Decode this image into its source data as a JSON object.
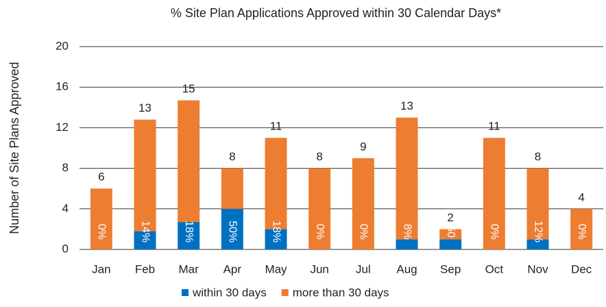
{
  "chart_data": {
    "type": "stacked_bar",
    "title": "% Site Plan Applications Approved within 30 Calendar Days*",
    "y_label": "Number of Site Plans Approved",
    "categories": [
      "Jan",
      "Feb",
      "Mar",
      "Apr",
      "May",
      "Jun",
      "Jul",
      "Aug",
      "Sep",
      "Oct",
      "Nov",
      "Dec"
    ],
    "series": [
      {
        "name": "within 30 days",
        "color": "#0070c0",
        "values": [
          0,
          1.8,
          2.7,
          4,
          2,
          0,
          0,
          1,
          1,
          0,
          1,
          0
        ]
      },
      {
        "name": "more than 30 days",
        "color": "#ed7d31",
        "values": [
          6,
          11,
          12,
          4,
          9,
          8,
          9,
          12,
          1,
          11,
          7,
          4
        ]
      }
    ],
    "totals": [
      6,
      13,
      15,
      8,
      11,
      8,
      9,
      13,
      2,
      11,
      8,
      4
    ],
    "percent_labels": [
      "0%",
      "14%",
      "18%",
      "50%",
      "18%",
      "0%",
      "0%",
      "8%",
      "50",
      "0%",
      "12%",
      "0%"
    ],
    "ylim": [
      0,
      20
    ],
    "yticks": [
      0,
      4,
      8,
      12,
      16,
      20
    ],
    "grid": true,
    "legend": "bottom"
  }
}
